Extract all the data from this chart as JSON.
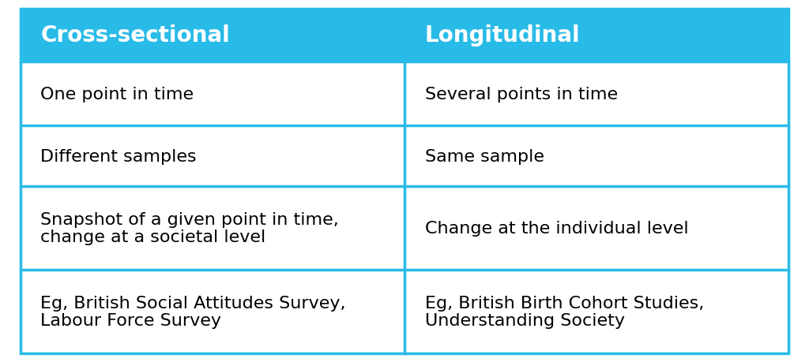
{
  "header": [
    "Cross-sectional",
    "Longitudinal"
  ],
  "rows": [
    [
      "One point in time",
      "Several points in time"
    ],
    [
      "Different samples",
      "Same sample"
    ],
    [
      "Snapshot of a given point in time,\nchange at a societal level",
      "Change at the individual level"
    ],
    [
      "Eg, British Social Attitudes Survey,\nLabour Force Survey",
      "Eg, British Birth Cohort Studies,\nUnderstanding Society"
    ]
  ],
  "header_bg_color": "#29BBE8",
  "header_text_color": "#FFFFFF",
  "cell_bg_color": "#FFFFFF",
  "cell_text_color": "#000000",
  "border_color": "#29BBE8",
  "header_fontsize": 20,
  "cell_fontsize": 16,
  "fig_width": 10.24,
  "fig_height": 4.6
}
